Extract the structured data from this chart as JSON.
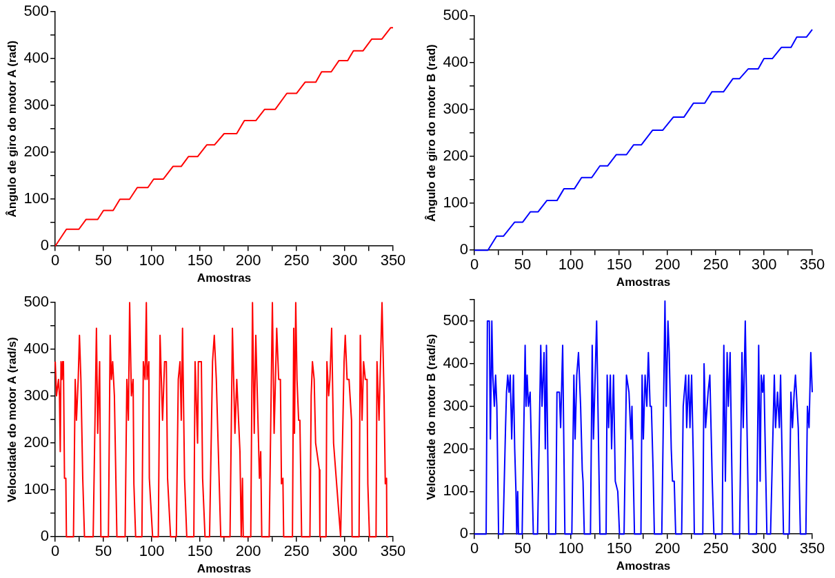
{
  "chart_data": [
    {
      "type": "line",
      "xlabel": "Amostras",
      "ylabel": "Ângulo de giro do motor A (rad)",
      "xlim": [
        0,
        350
      ],
      "ylim": [
        0,
        500
      ],
      "xticks": [
        0,
        {
          "value": 25,
          "label": null
        },
        50,
        {
          "value": 75,
          "label": null
        },
        100,
        {
          "value": 125,
          "label": null
        },
        150,
        {
          "value": 175,
          "label": null
        },
        200,
        {
          "value": 225,
          "label": null
        },
        250,
        {
          "value": 275,
          "label": null
        },
        300,
        {
          "value": 325,
          "label": null
        },
        350
      ],
      "yticks": [
        0,
        {
          "value": 50,
          "label": null
        },
        100,
        {
          "value": 150,
          "label": null
        },
        200,
        {
          "value": 250,
          "label": null
        },
        300,
        {
          "value": 350,
          "label": null
        },
        400,
        {
          "value": 450,
          "label": null
        },
        500
      ],
      "grid": false,
      "legend": false,
      "marker": "none",
      "line_style": "solid",
      "series": [
        {
          "color": "#ff0000",
          "x": [
            0,
            11.6,
            24.5,
            32,
            44,
            50,
            60,
            67,
            77,
            85,
            96,
            102,
            112,
            122,
            130.5,
            138,
            147.5,
            157,
            165,
            175,
            188,
            196,
            208,
            217,
            228,
            240,
            250,
            259,
            270,
            276,
            286,
            294,
            303,
            309,
            319,
            328,
            338.5,
            347.5,
            350
          ],
          "values": [
            0,
            36,
            36,
            57,
            57,
            76,
            76,
            100,
            100,
            125,
            125,
            143,
            143,
            170,
            170,
            191,
            191,
            216,
            216,
            240,
            240,
            268,
            268,
            292,
            292,
            326,
            326,
            350,
            350,
            372,
            372,
            396,
            396,
            417,
            417,
            442,
            442,
            466,
            466
          ]
        }
      ]
    },
    {
      "type": "line",
      "xlabel": "Amostras",
      "ylabel": "Ângulo de giro do motor B (rad)",
      "xlim": [
        0,
        350
      ],
      "ylim": [
        0,
        500
      ],
      "xticks": [
        0,
        {
          "value": 25,
          "label": null
        },
        50,
        {
          "value": 75,
          "label": null
        },
        100,
        {
          "value": 125,
          "label": null
        },
        150,
        {
          "value": 175,
          "label": null
        },
        200,
        {
          "value": 225,
          "label": null
        },
        250,
        {
          "value": 275,
          "label": null
        },
        300,
        {
          "value": 325,
          "label": null
        },
        350
      ],
      "yticks": [
        0,
        {
          "value": 50,
          "label": null
        },
        100,
        {
          "value": 150,
          "label": null
        },
        200,
        {
          "value": 250,
          "label": null
        },
        300,
        {
          "value": 350,
          "label": null
        },
        400,
        {
          "value": 450,
          "label": null
        },
        500
      ],
      "grid": false,
      "legend": false,
      "marker": "none",
      "line_style": "solid",
      "series": [
        {
          "color": "#0000ff",
          "x": [
            0,
            13.9,
            23,
            30,
            41.7,
            50,
            58,
            66,
            75,
            85.5,
            92.7,
            103.5,
            111,
            121.5,
            130,
            138,
            147,
            157.5,
            165,
            173,
            184.5,
            195,
            206,
            217,
            227,
            238.6,
            246,
            258,
            267.7,
            274.6,
            283.6,
            294,
            300,
            308.6,
            318,
            328,
            334,
            344,
            350
          ],
          "values": [
            0,
            0,
            30,
            30,
            60,
            60,
            82,
            82,
            106,
            106,
            131,
            131,
            155,
            155,
            180,
            180,
            204,
            204,
            225,
            225,
            256,
            256,
            284,
            284,
            314,
            314,
            338,
            338,
            366,
            366,
            387,
            387,
            409,
            409,
            433,
            433,
            455,
            455,
            471
          ]
        }
      ]
    },
    {
      "type": "line",
      "xlabel": "Amostras",
      "ylabel": "Velocidade do motor A (rad/s)",
      "xlim": [
        0,
        350
      ],
      "ylim": [
        0,
        500
      ],
      "xticks": [
        0,
        {
          "value": 25,
          "label": null
        },
        50,
        {
          "value": 75,
          "label": null
        },
        100,
        {
          "value": 125,
          "label": null
        },
        150,
        {
          "value": 175,
          "label": null
        },
        200,
        {
          "value": 225,
          "label": null
        },
        250,
        {
          "value": 275,
          "label": null
        },
        300,
        {
          "value": 325,
          "label": null
        },
        350
      ],
      "yticks": [
        0,
        {
          "value": 50,
          "label": null
        },
        100,
        {
          "value": 150,
          "label": null
        },
        200,
        {
          "value": 250,
          "label": null
        },
        300,
        {
          "value": 350,
          "label": null
        },
        400,
        {
          "value": 450,
          "label": null
        },
        500
      ],
      "grid": false,
      "legend": false,
      "marker": "none",
      "line_style": "solid",
      "series": [
        {
          "color": "#ff0000",
          "x": [
            0,
            1.3,
            3.4,
            4.4,
            5.2,
            6,
            7,
            7.7,
            8.5,
            9.6,
            11,
            11.6,
            18.9,
            20.7,
            22,
            23.8,
            25.1,
            26.6,
            28.5,
            30.3,
            39.3,
            42.7,
            44,
            46,
            47.3,
            55.1,
            56.9,
            58.2,
            59.5,
            61.3,
            63.9,
            72.4,
            74.2,
            75.8,
            77.1,
            78.9,
            80.7,
            81.5,
            83.3,
            89.8,
            91.3,
            93.1,
            94.4,
            95.2,
            97,
            97.5,
            100.9,
            106.8,
            108.6,
            111.2,
            113.3,
            115.1,
            116.4,
            119.5,
            125.5,
            126.2,
            127.5,
            129.3,
            130.6,
            131.9,
            134,
            136.3,
            143.6,
            144.9,
            147.5,
            148.3,
            151.4,
            152.7,
            155.2,
            159.9,
            163,
            164.8,
            166.9,
            171.5,
            181.1,
            183.6,
            186.2,
            188.1,
            191.4,
            192.7,
            194,
            194.8,
            202.6,
            204.4,
            206.2,
            207.8,
            211.6,
            212.9,
            214,
            221.7,
            225,
            226.8,
            229.5,
            231.5,
            233.3,
            234.4,
            235.9,
            236.7,
            245.8,
            247.1,
            247.9,
            249.2,
            250.5,
            252.2,
            253.5,
            255.3,
            263.9,
            265.2,
            266.5,
            268.3,
            269.8,
            273.7,
            274.2,
            280.6,
            281.5,
            283.3,
            284.6,
            286.4,
            288.4,
            295.7,
            299.3,
            300.5,
            302.4,
            304.4,
            307,
            307.6,
            314.8,
            316.1,
            317.9,
            319.5,
            321.3,
            323.1,
            323.9,
            325.6,
            332.4,
            333.4,
            335.5,
            338.6,
            340.7,
            342,
            343.3,
            343.6,
            345.4
          ],
          "values": [
            374,
            301,
            336,
            301,
            182,
            374,
            336,
            374,
            374,
            125,
            125,
            0,
            0,
            336,
            249,
            336,
            430,
            336,
            125,
            0,
            0,
            445,
            221,
            374,
            0,
            0,
            430,
            336,
            374,
            301,
            0,
            0,
            336,
            249,
            500,
            301,
            336,
            113,
            0,
            0,
            374,
            336,
            500,
            336,
            374,
            125,
            0,
            0,
            430,
            249,
            374,
            374,
            125,
            0,
            0,
            125,
            336,
            374,
            249,
            445,
            125,
            0,
            0,
            374,
            200,
            374,
            374,
            125,
            0,
            0,
            374,
            430,
            336,
            0,
            0,
            445,
            221,
            336,
            182,
            0,
            125,
            0,
            0,
            500,
            221,
            430,
            125,
            182,
            0,
            0,
            500,
            221,
            445,
            336,
            336,
            113,
            125,
            0,
            0,
            445,
            221,
            500,
            336,
            249,
            249,
            0,
            0,
            301,
            374,
            336,
            200,
            143,
            0,
            0,
            374,
            301,
            336,
            445,
            200,
            0,
            374,
            430,
            336,
            336,
            249,
            0,
            0,
            430,
            249,
            374,
            336,
            336,
            113,
            0,
            0,
            374,
            249,
            500,
            301,
            113,
            125,
            0,
            0
          ]
        }
      ]
    },
    {
      "type": "line",
      "xlabel": "Amostras",
      "ylabel": "Velocidade do motor B (rad/s)",
      "xlim": [
        0,
        350
      ],
      "ylim": [
        0,
        550
      ],
      "xticks": [
        0,
        {
          "value": 25,
          "label": null
        },
        50,
        {
          "value": 75,
          "label": null
        },
        100,
        {
          "value": 125,
          "label": null
        },
        150,
        {
          "value": 175,
          "label": null
        },
        200,
        {
          "value": 225,
          "label": null
        },
        250,
        {
          "value": 275,
          "label": null
        },
        300,
        {
          "value": 325,
          "label": null
        },
        350
      ],
      "yticks": [
        0,
        {
          "value": 50,
          "label": null
        },
        100,
        {
          "value": 150,
          "label": null
        },
        200,
        {
          "value": 250,
          "label": null
        },
        300,
        {
          "value": 350,
          "label": null
        },
        400,
        {
          "value": 450,
          "label": null
        },
        500,
        {
          "value": 550,
          "label": null
        }
      ],
      "grid": false,
      "legend": false,
      "marker": "none",
      "line_style": "solid",
      "series": [
        {
          "color": "#0000ff",
          "x": [
            0,
            12.1,
            13.4,
            15.4,
            16.5,
            18,
            19,
            20.6,
            21.9,
            23.2,
            25,
            29.6,
            32.2,
            33.2,
            34.5,
            35.8,
            37.1,
            38.6,
            40.4,
            41.7,
            43,
            43.8,
            44.8,
            45.6,
            49.4,
            52.5,
            53.5,
            54.6,
            55.9,
            57.7,
            61,
            65.4,
            68.7,
            70,
            72.1,
            73.4,
            74.6,
            77,
            84.2,
            85.5,
            88,
            89.3,
            91.4,
            93.7,
            100.9,
            103,
            104.3,
            106,
            107.8,
            110,
            111.7,
            112.5,
            113.8,
            120.2,
            122,
            123.3,
            126.6,
            130,
            136.4,
            137.5,
            139,
            140.8,
            142.1,
            144.1,
            145.9,
            148.5,
            150.3,
            155,
            157.5,
            160.1,
            162.2,
            163.2,
            165.8,
            172.5,
            173.7,
            175,
            176.8,
            178.6,
            180.2,
            182,
            183.3,
            185.1,
            186.4,
            194.1,
            195.6,
            197.4,
            198.7,
            200.5,
            201.8,
            203.9,
            205.2,
            207,
            208.5,
            214.7,
            216.3,
            218.9,
            219.9,
            222,
            223.3,
            225,
            227,
            227.8,
            236.6,
            237.9,
            239.5,
            242.1,
            243.9,
            246.4,
            248.1,
            256.6,
            258.4,
            260,
            261.8,
            263.1,
            264.9,
            267.7,
            274.7,
            277.2,
            278.5,
            280.6,
            282.4,
            284.2,
            292.2,
            294.5,
            296,
            297.1,
            298.6,
            299.9,
            303,
            306.8,
            310.7,
            312,
            314,
            315.9,
            317.2,
            320.2,
            326.1,
            327.9,
            329.5,
            331.3,
            332.6,
            335.5,
            337.7,
            343.4,
            345,
            346.7,
            348.5,
            350
          ],
          "values": [
            0,
            0,
            500,
            500,
            223,
            500,
            373,
            300,
            373,
            300,
            0,
            0,
            250,
            333,
            373,
            333,
            373,
            223,
            373,
            200,
            100,
            0,
            100,
            0,
            0,
            443,
            300,
            373,
            300,
            333,
            0,
            0,
            443,
            300,
            426,
            200,
            443,
            0,
            0,
            333,
            333,
            250,
            443,
            0,
            0,
            373,
            223,
            373,
            426,
            300,
            150,
            124,
            0,
            0,
            443,
            223,
            500,
            0,
            0,
            373,
            250,
            373,
            200,
            373,
            124,
            100,
            0,
            0,
            373,
            333,
            223,
            300,
            0,
            0,
            373,
            223,
            373,
            300,
            426,
            300,
            300,
            150,
            0,
            0,
            250,
            547,
            300,
            500,
            426,
            200,
            124,
            124,
            0,
            0,
            300,
            373,
            250,
            373,
            250,
            373,
            150,
            0,
            0,
            400,
            250,
            333,
            373,
            124,
            0,
            0,
            443,
            124,
            426,
            300,
            426,
            0,
            0,
            426,
            250,
            500,
            250,
            0,
            0,
            443,
            124,
            373,
            333,
            373,
            0,
            0,
            373,
            250,
            333,
            250,
            373,
            0,
            0,
            333,
            250,
            333,
            373,
            250,
            0,
            0,
            300,
            250,
            426,
            333
          ]
        }
      ]
    }
  ]
}
